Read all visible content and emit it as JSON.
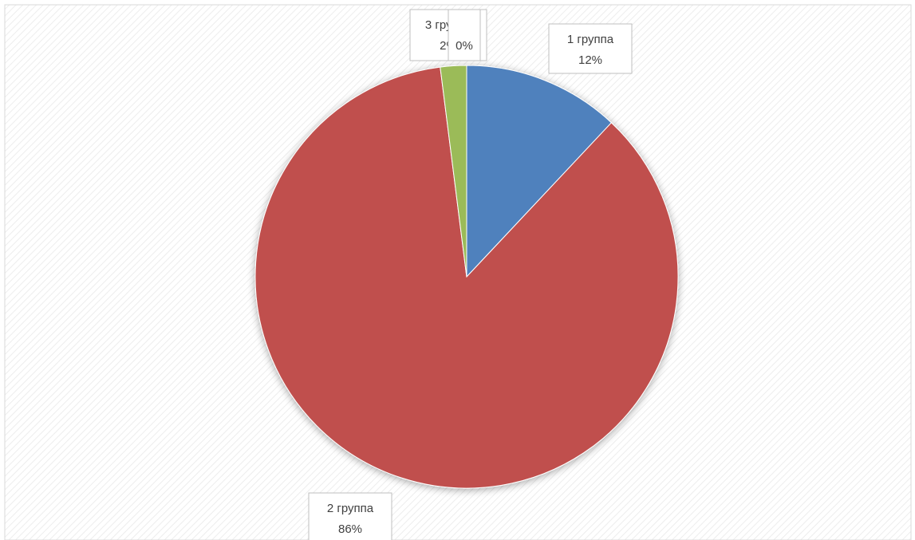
{
  "chart_data": {
    "type": "pie",
    "categories": [
      "1 группа",
      "2 группа",
      "3 группа",
      ""
    ],
    "values": [
      12,
      86,
      2,
      0
    ],
    "data_labels": [
      "12%",
      "86%",
      "2%",
      "0%"
    ],
    "colors": [
      "#4f81bd",
      "#c0504d",
      "#9bbb59",
      "#8064a2"
    ],
    "title": "",
    "legend": "none",
    "grid": false,
    "background": "hatched"
  }
}
